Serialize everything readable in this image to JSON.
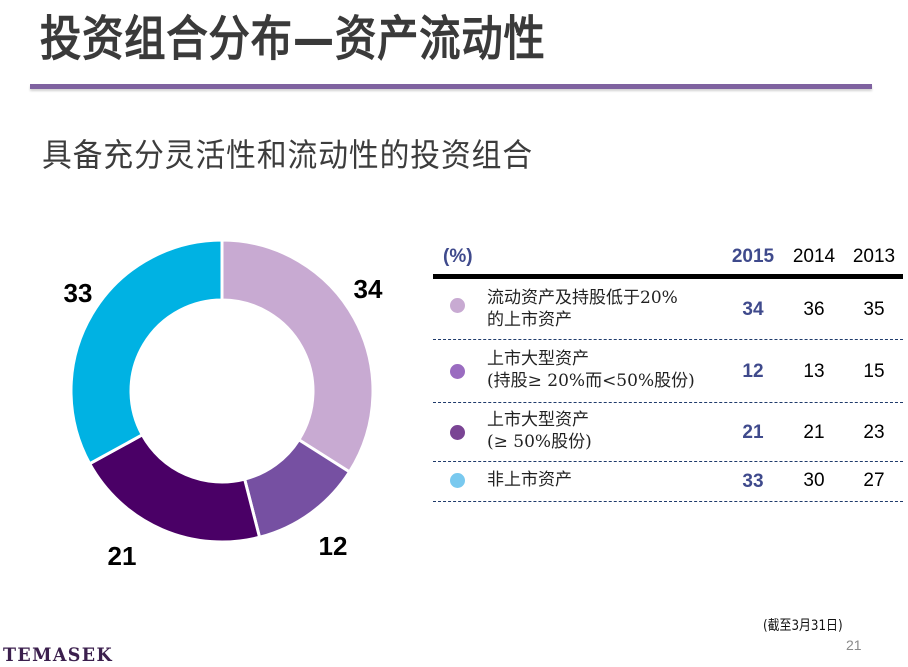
{
  "header": {
    "title": "投资组合分布—资产流动性",
    "accent_color": "#7f62a0"
  },
  "subtitle": "具备充分灵活性和流动性的投资组合",
  "chart_data": {
    "type": "pie",
    "variant": "donut",
    "title": "",
    "year": "2015",
    "categories": [
      "流动资产及持股低于20%的上市资产",
      "上市大型资产(持股≥ 20%而<50%股份)",
      "上市大型资产(≥ 50%股份)",
      "非上市资产"
    ],
    "values": [
      34,
      12,
      21,
      33
    ],
    "colors": [
      "#c8aad2",
      "#7650a2",
      "#4a0066",
      "#00b2e3"
    ],
    "data_labels": [
      "34",
      "12",
      "21",
      "33"
    ],
    "start": "top",
    "direction": "clockwise"
  },
  "table": {
    "unit_label": "(%)",
    "columns": [
      "2015",
      "2014",
      "2013"
    ],
    "rows": [
      {
        "label_line1": "流动资产及持股低于20%",
        "label_line2": "的上市资产",
        "bullet_color": "#c8aad2",
        "values": [
          "34",
          "36",
          "35"
        ]
      },
      {
        "label_line1": "上市大型资产",
        "label_line2": "(持股≥ 20%而<50%股份)",
        "bullet_color": "#9a6cc0",
        "values": [
          "12",
          "13",
          "15"
        ]
      },
      {
        "label_line1": "上市大型资产",
        "label_line2": "(≥ 50%股份)",
        "bullet_color": "#7a4494",
        "values": [
          "21",
          "21",
          "23"
        ]
      },
      {
        "label_line1": "非上市资产",
        "label_line2": "",
        "bullet_color": "#79c9ef",
        "values": [
          "33",
          "30",
          "27"
        ]
      }
    ]
  },
  "footer": {
    "note": "(截至3月31日)",
    "page_number": "21",
    "logo": "TEMASEK"
  }
}
